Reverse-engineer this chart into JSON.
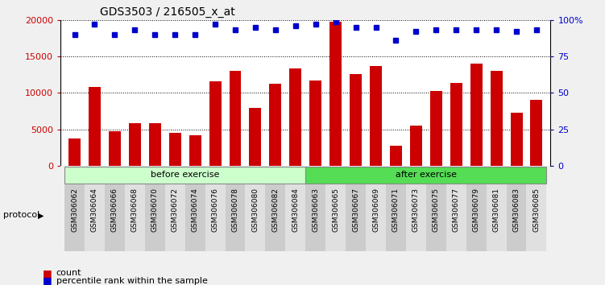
{
  "title": "GDS3503 / 216505_x_at",
  "categories": [
    "GSM306062",
    "GSM306064",
    "GSM306066",
    "GSM306068",
    "GSM306070",
    "GSM306072",
    "GSM306074",
    "GSM306076",
    "GSM306078",
    "GSM306080",
    "GSM306082",
    "GSM306084",
    "GSM306063",
    "GSM306065",
    "GSM306067",
    "GSM306069",
    "GSM306071",
    "GSM306073",
    "GSM306075",
    "GSM306077",
    "GSM306079",
    "GSM306081",
    "GSM306083",
    "GSM306085"
  ],
  "bar_values": [
    3800,
    10800,
    4700,
    5900,
    5800,
    4500,
    4200,
    11600,
    13000,
    8000,
    11300,
    13400,
    11700,
    19700,
    12600,
    13700,
    2800,
    5500,
    10300,
    11400,
    14000,
    13000,
    7300,
    9000
  ],
  "percentile_values": [
    90,
    97,
    90,
    93,
    90,
    90,
    90,
    97,
    93,
    95,
    93,
    96,
    97,
    99,
    95,
    95,
    86,
    92,
    93,
    93,
    93,
    93,
    92,
    93
  ],
  "bar_color": "#cc0000",
  "dot_color": "#0000cc",
  "ylim_left": [
    0,
    20000
  ],
  "ylim_right": [
    0,
    100
  ],
  "yticks_left": [
    0,
    5000,
    10000,
    15000,
    20000
  ],
  "yticks_right": [
    0,
    25,
    50,
    75,
    100
  ],
  "yticklabels_left": [
    "0",
    "5000",
    "10000",
    "15000",
    "20000"
  ],
  "yticklabels_right": [
    "0",
    "25",
    "50",
    "75",
    "100%"
  ],
  "before_exercise_count": 12,
  "after_exercise_count": 12,
  "before_color": "#ccffcc",
  "after_color": "#55dd55",
  "before_label": "before exercise",
  "after_label": "after exercise",
  "protocol_label": "protocol",
  "legend_count_label": "count",
  "legend_percentile_label": "percentile rank within the sample",
  "fig_bg_color": "#f0f0f0",
  "plot_bg_color": "#ffffff",
  "tick_bg_even": "#cccccc",
  "tick_bg_odd": "#e0e0e0"
}
